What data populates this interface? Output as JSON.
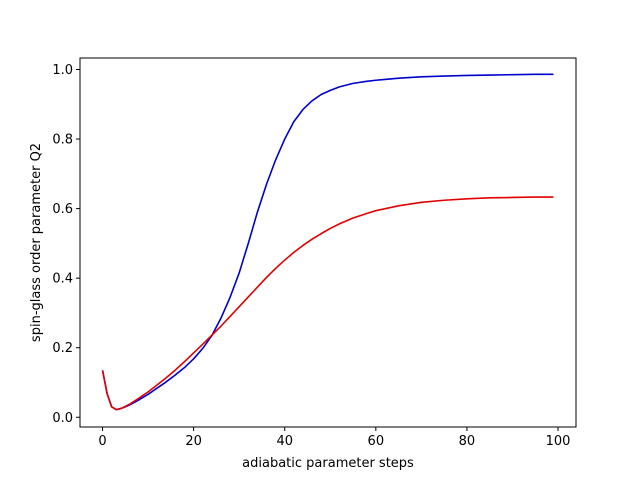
{
  "chart_data": {
    "type": "line",
    "xlabel": "adiabatic parameter steps",
    "ylabel": "spin-glass order parameter Q2",
    "xlim": [
      -4.95,
      103.95
    ],
    "ylim": [
      -0.028,
      1.033
    ],
    "xticks": [
      0,
      20,
      40,
      60,
      80,
      100
    ],
    "yticks": [
      0.0,
      0.2,
      0.4,
      0.6,
      0.8,
      1.0
    ],
    "xtick_labels": [
      "0",
      "20",
      "40",
      "60",
      "80",
      "100"
    ],
    "ytick_labels": [
      "0.0",
      "0.2",
      "0.4",
      "0.6",
      "0.8",
      "1.0"
    ],
    "grid": false,
    "series": [
      {
        "color": "#0000cc",
        "x": [
          0,
          1,
          2,
          3,
          4,
          5,
          6,
          8,
          10,
          12,
          14,
          16,
          18,
          20,
          22,
          24,
          26,
          28,
          30,
          32,
          34,
          36,
          38,
          40,
          42,
          44,
          46,
          48,
          50,
          52,
          55,
          58,
          60,
          65,
          70,
          75,
          80,
          85,
          90,
          95,
          99
        ],
        "y": [
          0.135,
          0.068,
          0.03,
          0.022,
          0.025,
          0.03,
          0.036,
          0.05,
          0.066,
          0.084,
          0.102,
          0.122,
          0.143,
          0.168,
          0.198,
          0.235,
          0.285,
          0.345,
          0.415,
          0.5,
          0.59,
          0.67,
          0.74,
          0.8,
          0.85,
          0.885,
          0.91,
          0.928,
          0.94,
          0.95,
          0.96,
          0.966,
          0.969,
          0.975,
          0.979,
          0.981,
          0.983,
          0.984,
          0.985,
          0.986,
          0.986
        ]
      },
      {
        "color": "#e00000",
        "x": [
          0,
          1,
          2,
          3,
          4,
          5,
          6,
          8,
          10,
          12,
          14,
          16,
          18,
          20,
          22,
          24,
          26,
          28,
          30,
          32,
          34,
          36,
          38,
          40,
          42,
          44,
          46,
          48,
          50,
          52,
          55,
          58,
          60,
          65,
          70,
          75,
          80,
          85,
          90,
          95,
          99
        ],
        "y": [
          0.135,
          0.068,
          0.03,
          0.022,
          0.025,
          0.031,
          0.038,
          0.055,
          0.073,
          0.093,
          0.114,
          0.136,
          0.16,
          0.185,
          0.21,
          0.236,
          0.262,
          0.29,
          0.318,
          0.346,
          0.374,
          0.402,
          0.428,
          0.452,
          0.474,
          0.494,
          0.512,
          0.528,
          0.543,
          0.556,
          0.573,
          0.586,
          0.594,
          0.608,
          0.618,
          0.624,
          0.628,
          0.631,
          0.632,
          0.633,
          0.633
        ]
      }
    ]
  }
}
